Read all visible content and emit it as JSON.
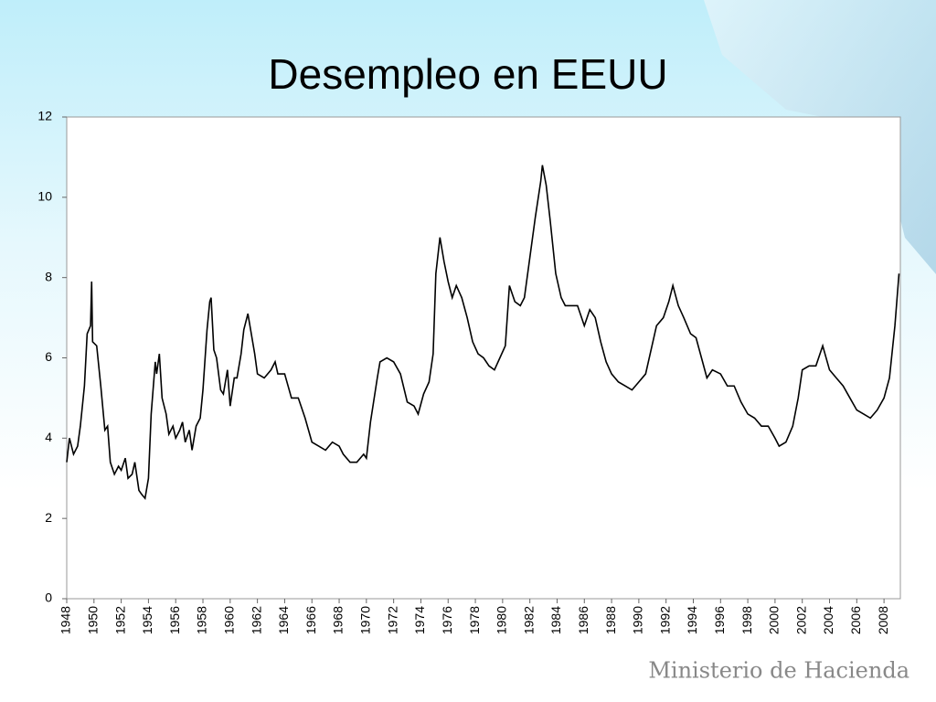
{
  "chart_data": {
    "type": "line",
    "title": "Desempleo en EEUU",
    "footer": "Ministerio de Hacienda",
    "x": [
      1948.0,
      1948.2,
      1948.5,
      1948.8,
      1949.0,
      1949.3,
      1949.5,
      1949.75,
      1949.83,
      1949.9,
      1950.2,
      1950.5,
      1950.8,
      1951.0,
      1951.2,
      1951.5,
      1951.8,
      1952.0,
      1952.3,
      1952.5,
      1952.8,
      1953.0,
      1953.3,
      1953.5,
      1953.75,
      1954.0,
      1954.2,
      1954.5,
      1954.6,
      1954.8,
      1955.0,
      1955.3,
      1955.5,
      1955.8,
      1956.0,
      1956.3,
      1956.5,
      1956.7,
      1957.0,
      1957.2,
      1957.5,
      1957.8,
      1958.0,
      1958.3,
      1958.5,
      1958.6,
      1958.8,
      1959.0,
      1959.3,
      1959.5,
      1959.8,
      1960.0,
      1960.3,
      1960.5,
      1960.8,
      1961.0,
      1961.3,
      1961.5,
      1961.8,
      1962.0,
      1962.5,
      1963.0,
      1963.3,
      1963.5,
      1964.0,
      1964.5,
      1965.0,
      1965.5,
      1966.0,
      1966.5,
      1967.0,
      1967.5,
      1968.0,
      1968.3,
      1968.8,
      1969.3,
      1969.8,
      1970.0,
      1970.3,
      1970.8,
      1971.0,
      1971.5,
      1972.0,
      1972.5,
      1973.0,
      1973.5,
      1973.8,
      1974.2,
      1974.6,
      1974.9,
      1975.1,
      1975.4,
      1975.7,
      1976.0,
      1976.3,
      1976.6,
      1977.0,
      1977.4,
      1977.8,
      1978.2,
      1978.6,
      1979.0,
      1979.4,
      1979.8,
      1980.2,
      1980.5,
      1980.9,
      1981.3,
      1981.6,
      1982.0,
      1982.4,
      1982.8,
      1982.92,
      1983.2,
      1983.5,
      1983.9,
      1984.3,
      1984.6,
      1985.0,
      1985.5,
      1986.0,
      1986.4,
      1986.8,
      1987.2,
      1987.6,
      1988.0,
      1988.5,
      1989.0,
      1989.5,
      1990.0,
      1990.5,
      1990.9,
      1991.3,
      1991.8,
      1992.2,
      1992.5,
      1992.9,
      1993.3,
      1993.8,
      1994.2,
      1994.6,
      1995.0,
      1995.4,
      1996.0,
      1996.5,
      1997.0,
      1997.5,
      1998.0,
      1998.5,
      1999.0,
      1999.5,
      2000.0,
      2000.3,
      2000.8,
      2001.3,
      2001.7,
      2002.0,
      2002.5,
      2003.0,
      2003.5,
      2004.0,
      2004.5,
      2005.0,
      2005.5,
      2006.0,
      2006.5,
      2007.0,
      2007.5,
      2008.0,
      2008.4,
      2008.8,
      2009.1
    ],
    "values": [
      3.4,
      4.0,
      3.6,
      3.8,
      4.3,
      5.3,
      6.6,
      6.8,
      7.9,
      6.4,
      6.3,
      5.3,
      4.2,
      4.3,
      3.4,
      3.1,
      3.3,
      3.2,
      3.5,
      3.0,
      3.1,
      3.4,
      2.7,
      2.6,
      2.5,
      3.0,
      4.6,
      5.9,
      5.6,
      6.1,
      5.0,
      4.6,
      4.1,
      4.3,
      4.0,
      4.2,
      4.4,
      3.9,
      4.2,
      3.7,
      4.3,
      4.5,
      5.2,
      6.7,
      7.4,
      7.5,
      6.2,
      6.0,
      5.2,
      5.1,
      5.7,
      4.8,
      5.5,
      5.5,
      6.1,
      6.7,
      7.1,
      6.7,
      6.1,
      5.6,
      5.5,
      5.7,
      5.9,
      5.6,
      5.6,
      5.0,
      5.0,
      4.5,
      3.9,
      3.8,
      3.7,
      3.9,
      3.8,
      3.6,
      3.4,
      3.4,
      3.6,
      3.5,
      4.4,
      5.5,
      5.9,
      6.0,
      5.9,
      5.6,
      4.9,
      4.8,
      4.6,
      5.1,
      5.4,
      6.1,
      8.1,
      9.0,
      8.4,
      7.9,
      7.5,
      7.8,
      7.5,
      7.0,
      6.4,
      6.1,
      6.0,
      5.8,
      5.7,
      6.0,
      6.3,
      7.8,
      7.4,
      7.3,
      7.5,
      8.5,
      9.5,
      10.4,
      10.8,
      10.3,
      9.4,
      8.1,
      7.5,
      7.3,
      7.3,
      7.3,
      6.8,
      7.2,
      7.0,
      6.4,
      5.9,
      5.6,
      5.4,
      5.3,
      5.2,
      5.4,
      5.6,
      6.2,
      6.8,
      7.0,
      7.4,
      7.8,
      7.3,
      7.0,
      6.6,
      6.5,
      6.0,
      5.5,
      5.7,
      5.6,
      5.3,
      5.3,
      4.9,
      4.6,
      4.5,
      4.3,
      4.3,
      4.0,
      3.8,
      3.9,
      4.3,
      5.0,
      5.7,
      5.8,
      5.8,
      6.3,
      5.7,
      5.5,
      5.3,
      5.0,
      4.7,
      4.6,
      4.5,
      4.7,
      5.0,
      5.5,
      6.8,
      8.1
    ],
    "color": "#000000",
    "xlim": [
      1948,
      2009.2
    ],
    "xticks": [
      1948,
      1950,
      1952,
      1954,
      1956,
      1958,
      1960,
      1962,
      1964,
      1966,
      1968,
      1970,
      1972,
      1974,
      1976,
      1978,
      1980,
      1982,
      1984,
      1986,
      1988,
      1990,
      1992,
      1994,
      1996,
      1998,
      2000,
      2002,
      2004,
      2006,
      2008
    ],
    "ylim": [
      0,
      12
    ],
    "yticks": [
      0,
      2,
      4,
      6,
      8,
      10,
      12
    ],
    "grid": false
  }
}
